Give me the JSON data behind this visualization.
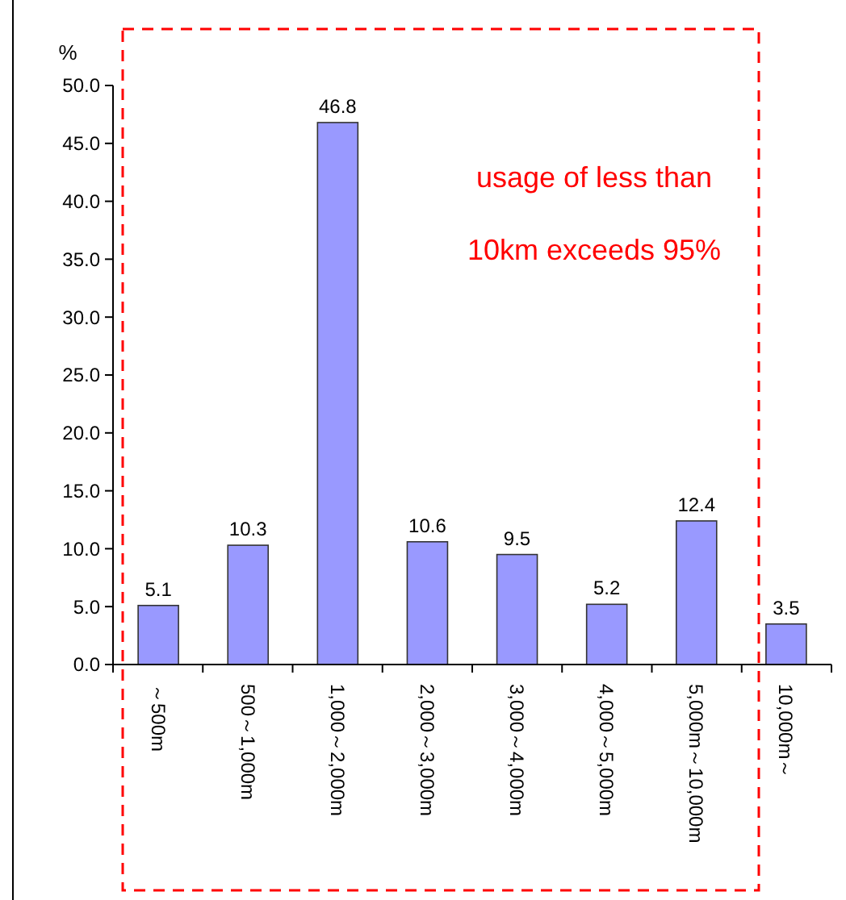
{
  "chart_data": {
    "type": "bar",
    "ylabel": "%",
    "categories": [
      "～500m",
      "500～1,000m",
      "1,000～2,000m",
      "2,000～3,000m",
      "3,000～4,000m",
      "4,000～5,000m",
      "5,000m～10,000m",
      "10,000m～"
    ],
    "values": [
      5.1,
      10.3,
      46.8,
      10.6,
      9.5,
      5.2,
      12.4,
      3.5
    ],
    "color": "#9999ff",
    "data_labels": true,
    "ylim": [
      0,
      50
    ],
    "yticks": [
      {
        "value": 0,
        "label": "0.0"
      },
      {
        "value": 5,
        "label": "5.0"
      },
      {
        "value": 10,
        "label": "10.0"
      },
      {
        "value": 15,
        "label": "15.0"
      },
      {
        "value": 20,
        "label": "20.0"
      },
      {
        "value": 25,
        "label": "25.0"
      },
      {
        "value": 30,
        "label": "30.0"
      },
      {
        "value": 35,
        "label": "35.0"
      },
      {
        "value": 40,
        "label": "40.0"
      },
      {
        "value": 45,
        "label": "45.0"
      },
      {
        "value": 50,
        "label": "50.0"
      }
    ],
    "grid": false,
    "annotations": [
      "usage of less than",
      "10km exceeds 95%"
    ]
  }
}
